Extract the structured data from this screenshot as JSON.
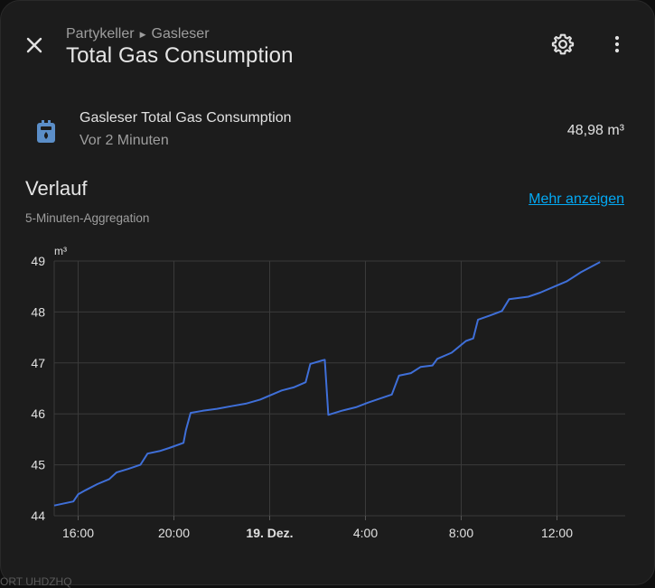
{
  "header": {
    "breadcrumb": [
      "Partykeller",
      "Gasleser"
    ],
    "title": "Total Gas Consumption",
    "icons": {
      "close": "close-icon",
      "settings": "gear-icon",
      "more": "dots-vertical-icon"
    }
  },
  "entity": {
    "icon": "gas-meter-icon",
    "name": "Gasleser Total Gas Consumption",
    "last_changed": "Vor 2 Minuten",
    "state": "48,98 m³"
  },
  "history": {
    "title": "Verlauf",
    "subtitle": "5-Minuten-Aggregation",
    "more_link": "Mehr anzeigen"
  },
  "colors": {
    "line": "#3f6fd8",
    "link": "#03a9f4",
    "icon": "#5b8ec8"
  },
  "chart_data": {
    "type": "line",
    "ylabel": "m³",
    "ylim": [
      44,
      49
    ],
    "xlim_hours": [
      15,
      27
    ],
    "yticks": [
      44,
      45,
      46,
      47,
      48,
      49
    ],
    "xticks": [
      {
        "h": 16,
        "label": "16:00",
        "bold": false
      },
      {
        "h": 20,
        "label": "20:00",
        "bold": false
      },
      {
        "h": 24,
        "label": "19. Dez.",
        "bold": true
      },
      {
        "h": 28,
        "label": "4:00",
        "bold": false
      },
      {
        "h": 32,
        "label": "8:00",
        "bold": false
      },
      {
        "h": 36,
        "label": "12:00",
        "bold": false
      }
    ],
    "series": [
      {
        "points": [
          [
            15.0,
            44.2
          ],
          [
            15.8,
            44.28
          ],
          [
            16.0,
            44.42
          ],
          [
            16.3,
            44.5
          ],
          [
            16.8,
            44.62
          ],
          [
            17.3,
            44.72
          ],
          [
            17.6,
            44.85
          ],
          [
            18.1,
            44.92
          ],
          [
            18.6,
            45.0
          ],
          [
            18.9,
            45.22
          ],
          [
            19.4,
            45.27
          ],
          [
            19.8,
            45.33
          ],
          [
            20.4,
            45.43
          ],
          [
            20.5,
            45.68
          ],
          [
            20.7,
            46.02
          ],
          [
            21.2,
            46.06
          ],
          [
            21.8,
            46.1
          ],
          [
            22.4,
            46.15
          ],
          [
            23.0,
            46.2
          ],
          [
            23.6,
            46.28
          ],
          [
            24.0,
            46.36
          ],
          [
            24.5,
            46.46
          ],
          [
            25.0,
            46.52
          ],
          [
            25.5,
            46.62
          ],
          [
            25.7,
            46.98
          ],
          [
            26.2,
            47.05
          ],
          [
            26.3,
            47.06
          ],
          [
            26.45,
            45.98
          ],
          [
            27.0,
            46.06
          ],
          [
            27.6,
            46.13
          ],
          [
            28.1,
            46.22
          ],
          [
            28.6,
            46.3
          ],
          [
            29.1,
            46.38
          ],
          [
            29.4,
            46.75
          ],
          [
            29.9,
            46.8
          ],
          [
            30.3,
            46.92
          ],
          [
            30.8,
            46.95
          ],
          [
            31.0,
            47.08
          ],
          [
            31.6,
            47.2
          ],
          [
            32.2,
            47.43
          ],
          [
            32.5,
            47.48
          ],
          [
            32.7,
            47.85
          ],
          [
            33.2,
            47.93
          ],
          [
            33.7,
            48.02
          ],
          [
            34.0,
            48.25
          ],
          [
            34.8,
            48.3
          ],
          [
            35.3,
            48.38
          ],
          [
            35.9,
            48.5
          ],
          [
            36.4,
            48.6
          ],
          [
            37.0,
            48.78
          ],
          [
            37.8,
            48.98
          ]
        ]
      }
    ]
  },
  "footer_ghost": "ORT UHDZHQ"
}
